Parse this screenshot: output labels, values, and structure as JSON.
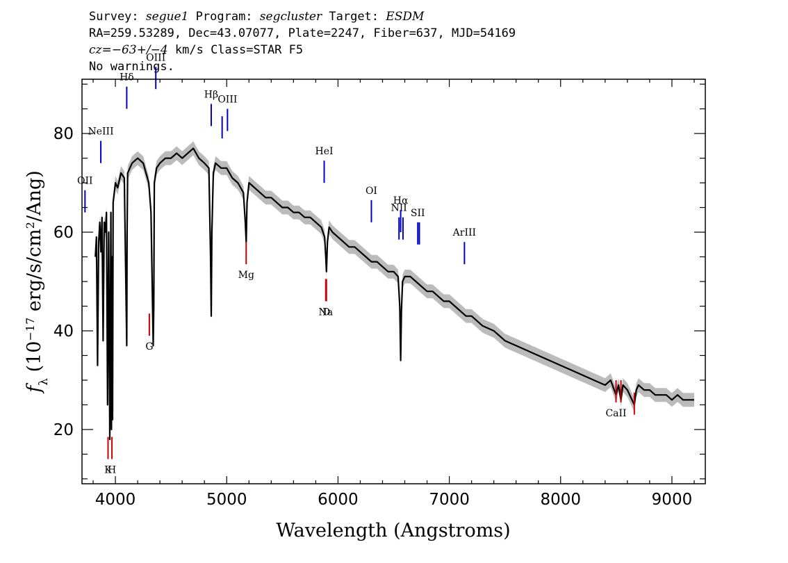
{
  "header": {
    "survey_label": "Survey:",
    "survey": "segue1",
    "program_label": "Program:",
    "program": "segcluster",
    "target_label": "Target:",
    "target": "ESDM",
    "line2": "RA=259.53289, Dec=43.07077, Plate=2247, Fiber=637, MJD=54169",
    "cz_label": "cz",
    "cz_value": "=−63+/−4",
    "cz_unit": "km/s Class=STAR F5",
    "line4": "No warnings."
  },
  "chart_data": {
    "type": "line",
    "xlabel": "Wavelength (Angstroms)",
    "ylabel": "f_λ (10^-17 erg/s/cm^2/Ang)",
    "xlim": [
      3700,
      9300
    ],
    "ylim": [
      9,
      91
    ],
    "x_ticks": [
      4000,
      5000,
      6000,
      7000,
      8000,
      9000
    ],
    "y_ticks": [
      20,
      40,
      60,
      80
    ],
    "grid": false,
    "colors": {
      "flux": "#000000",
      "error_band": "#bbbbbb",
      "emission": "#0000cc",
      "absorption": "#cc0000"
    },
    "series": [
      {
        "role": "flux",
        "x": [
          3820,
          3830,
          3840,
          3850,
          3860,
          3870,
          3880,
          3890,
          3900,
          3910,
          3920,
          3930,
          3940,
          3950,
          3960,
          3965,
          3970,
          3975,
          3980,
          3990,
          4000,
          4020,
          4050,
          4080,
          4100,
          4102,
          4105,
          4110,
          4130,
          4150,
          4200,
          4250,
          4300,
          4320,
          4340,
          4345,
          4350,
          4370,
          4400,
          4450,
          4500,
          4550,
          4600,
          4650,
          4700,
          4750,
          4800,
          4840,
          4855,
          4861,
          4867,
          4880,
          4900,
          4950,
          5000,
          5050,
          5100,
          5150,
          5167,
          5175,
          5183,
          5200,
          5250,
          5300,
          5350,
          5400,
          5450,
          5500,
          5550,
          5600,
          5650,
          5700,
          5750,
          5800,
          5850,
          5880,
          5890,
          5896,
          5905,
          5920,
          5950,
          6000,
          6050,
          6100,
          6150,
          6200,
          6250,
          6300,
          6350,
          6400,
          6450,
          6500,
          6540,
          6555,
          6563,
          6570,
          6580,
          6600,
          6650,
          6700,
          6750,
          6800,
          6850,
          6900,
          6950,
          7000,
          7050,
          7100,
          7150,
          7200,
          7300,
          7400,
          7500,
          7600,
          7700,
          7800,
          7900,
          8000,
          8100,
          8200,
          8300,
          8400,
          8450,
          8498,
          8520,
          8542,
          8560,
          8600,
          8662,
          8680,
          8700,
          8750,
          8800,
          8850,
          8900,
          8950,
          9000,
          9050,
          9100,
          9150,
          9200
        ],
        "y": [
          55,
          59,
          33,
          58,
          62,
          56,
          63,
          38,
          62,
          60,
          64,
          25,
          60,
          18,
          64,
          20,
          55,
          22,
          66,
          68,
          70,
          69,
          72,
          71,
          40,
          37,
          60,
          72,
          73,
          74,
          75,
          74,
          70,
          64,
          37,
          45,
          70,
          73,
          74,
          75,
          75,
          76,
          75,
          76,
          77,
          75,
          74,
          73,
          55,
          43,
          60,
          72,
          74,
          73,
          73,
          71,
          70,
          68,
          62,
          58,
          66,
          70,
          69,
          68,
          67,
          67,
          66,
          65,
          65,
          64,
          64,
          63,
          63,
          62,
          61,
          59,
          55,
          52,
          58,
          61,
          60,
          59,
          58,
          57,
          57,
          56,
          55,
          54,
          54,
          53,
          52,
          52,
          51,
          45,
          34,
          44,
          50,
          51,
          51,
          50,
          49,
          48,
          48,
          47,
          46,
          46,
          45,
          44,
          43,
          43,
          41,
          40,
          38,
          37,
          36,
          35,
          34,
          33,
          32,
          31,
          30,
          29,
          30,
          27,
          29,
          26,
          29,
          28,
          25,
          28,
          29,
          28,
          28,
          27,
          27,
          27,
          26,
          27,
          26,
          26,
          26
        ],
        "error_half_width": 1.4
      }
    ],
    "annotations": {
      "emission": [
        {
          "label": "OII",
          "x": 3727,
          "y": 64,
          "len": 4.5
        },
        {
          "label": "NeIII",
          "x": 3869,
          "y": 74,
          "len": 4.5
        },
        {
          "label": "Hδ",
          "x": 4102,
          "y": 85,
          "len": 4.5
        },
        {
          "label": "OIII",
          "x": 4363,
          "y": 89,
          "len": 4.5
        },
        {
          "label": "Hβ",
          "x": 4861,
          "y": 81.5,
          "len": 4.5
        },
        {
          "label": "OIII",
          "x": 4959,
          "y": 79,
          "len": 4.5,
          "hide_label": true
        },
        {
          "label": "OIII",
          "x": 5007,
          "y": 80.5,
          "len": 4.5
        },
        {
          "label": "HeI",
          "x": 5876,
          "y": 70,
          "len": 4.5
        },
        {
          "label": "OI",
          "x": 6300,
          "y": 62,
          "len": 4.5
        },
        {
          "label": "NII",
          "x": 6548,
          "y": 58.5,
          "len": 4.5
        },
        {
          "label": "Hα",
          "x": 6563,
          "y": 60,
          "len": 4.5
        },
        {
          "label": "NII",
          "x": 6584,
          "y": 58.5,
          "len": 4.5,
          "hide_label": true
        },
        {
          "label": "SII",
          "x": 6717,
          "y": 57.5,
          "len": 4.5
        },
        {
          "label": "SII",
          "x": 6731,
          "y": 57.5,
          "len": 4.5,
          "hide_label": true
        },
        {
          "label": "ArIII",
          "x": 7136,
          "y": 53.5,
          "len": 4.5
        }
      ],
      "absorption": [
        {
          "label": "K",
          "x": 3934,
          "y": 14,
          "len": 4.5
        },
        {
          "label": "H",
          "x": 3969,
          "y": 14,
          "len": 4.5
        },
        {
          "label": "G",
          "x": 4305,
          "y": 39,
          "len": 4.5
        },
        {
          "label": "Mg",
          "x": 5175,
          "y": 53.5,
          "len": 4.5
        },
        {
          "label": "Na",
          "x": 5890,
          "y": 46,
          "len": 4.5
        },
        {
          "label": "D",
          "x": 5896,
          "y": 46,
          "len": 4.5
        },
        {
          "label": "CaII",
          "x": 8498,
          "y": 25.5,
          "len": 4.5
        },
        {
          "label": "CaII",
          "x": 8542,
          "y": 25.5,
          "len": 4.5,
          "hide_label": true
        },
        {
          "label": "CaII",
          "x": 8662,
          "y": 23,
          "len": 4.5,
          "hide_label": true
        }
      ]
    }
  }
}
